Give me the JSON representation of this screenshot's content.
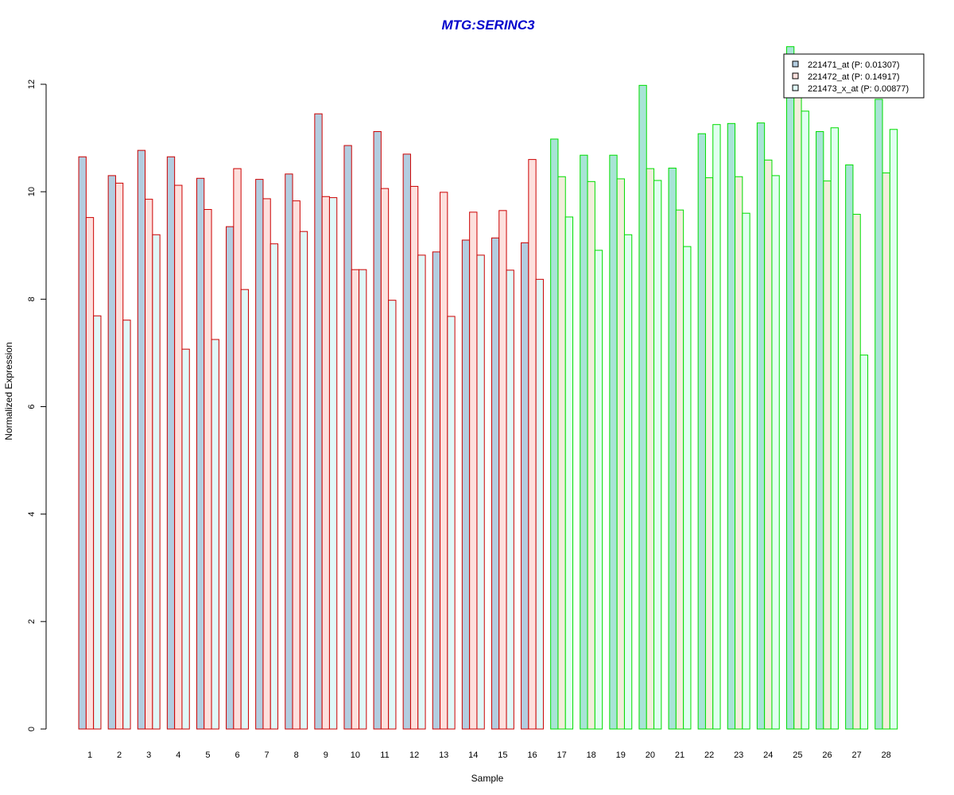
{
  "chart_data": {
    "type": "bar",
    "title": "MTG:SERINC3",
    "xlabel": "Sample",
    "ylabel": "Normalized Expression",
    "ylim": [
      0,
      12
    ],
    "y_ticks": [
      "0",
      "2",
      "4",
      "6",
      "8",
      "10",
      "12"
    ],
    "grid": false,
    "legend_position": "top-right",
    "categories": [
      "1",
      "2",
      "3",
      "4",
      "5",
      "6",
      "7",
      "8",
      "9",
      "10",
      "11",
      "12",
      "13",
      "14",
      "15",
      "16",
      "17",
      "18",
      "19",
      "20",
      "21",
      "22",
      "23",
      "24",
      "25",
      "26",
      "27",
      "28"
    ],
    "groups": [
      {
        "samples": [
          1,
          16
        ],
        "border_color": "#CC0000"
      },
      {
        "samples": [
          17,
          28
        ],
        "border_color": "#00DD00"
      }
    ],
    "series": [
      {
        "name": "221471_at (P: 0.01307)",
        "fill_group1": "#B3CDE0",
        "fill_group2": "#A8E4D6",
        "values": [
          10.65,
          10.3,
          10.77,
          10.65,
          10.25,
          9.35,
          10.23,
          10.33,
          11.45,
          10.86,
          11.12,
          10.7,
          8.88,
          9.1,
          9.14,
          9.05,
          10.98,
          10.68,
          10.68,
          11.98,
          10.44,
          11.08,
          11.27,
          11.28,
          12.7,
          11.12,
          10.5,
          11.72
        ]
      },
      {
        "name": "221472_at (P: 0.14917)",
        "fill_group1": "#FDE0DD",
        "fill_group2": "#F2EEDB",
        "values": [
          9.52,
          10.16,
          9.86,
          10.12,
          9.67,
          10.43,
          9.87,
          9.83,
          9.91,
          8.55,
          10.06,
          10.1,
          9.99,
          9.62,
          9.65,
          10.6,
          10.28,
          10.19,
          10.24,
          10.43,
          9.66,
          10.26,
          10.28,
          10.59,
          11.9,
          10.2,
          9.58,
          10.35
        ]
      },
      {
        "name": "221473_x_at (P: 0.00877)",
        "fill_group1": "#E0F8F8",
        "fill_group2": "#E0FFF0",
        "values": [
          7.69,
          7.61,
          9.2,
          7.07,
          7.25,
          8.18,
          9.03,
          9.26,
          9.89,
          8.55,
          7.98,
          8.82,
          7.68,
          8.82,
          8.54,
          8.37,
          9.53,
          8.91,
          9.2,
          10.21,
          8.98,
          11.25,
          9.6,
          10.3,
          11.5,
          11.19,
          6.96,
          11.16
        ]
      }
    ]
  }
}
